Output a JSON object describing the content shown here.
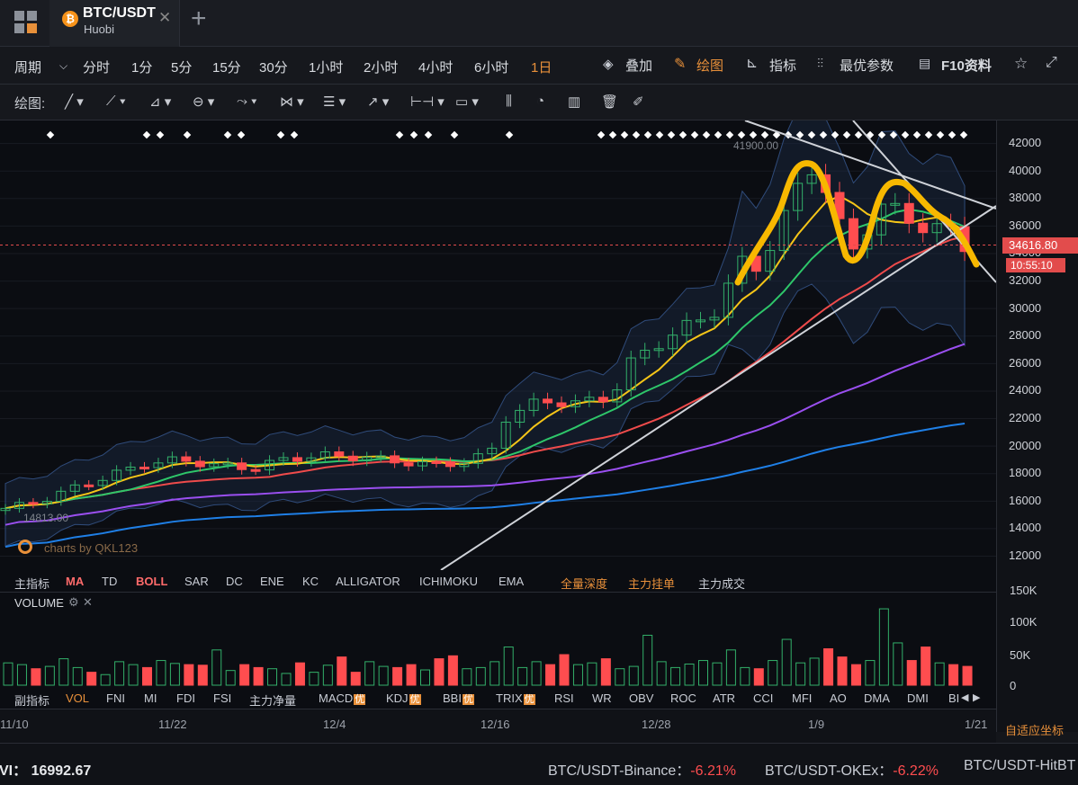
{
  "tab": {
    "symbol": "BTC/USDT",
    "exchange": "Huobi",
    "coin_glyph": "₿"
  },
  "periods": [
    "周期",
    "分时",
    "1分",
    "5分",
    "15分",
    "30分",
    "1小时",
    "2小时",
    "4小时",
    "6小时",
    "1日"
  ],
  "active_period": "1日",
  "toolbar_right": {
    "overlay": "叠加",
    "draw": "绘图",
    "indicator": "指标",
    "optimal": "最优参数",
    "f10": "F10资料"
  },
  "draw_label": "绘图:",
  "chart": {
    "high_label": "41900.00",
    "low_label": "14813.00",
    "watermark": "charts by QKL123",
    "last_price": "34616.80",
    "countdown": "10:55:10"
  },
  "y_ticks": [
    "42000",
    "40000",
    "38000",
    "36000",
    "34000",
    "32000",
    "30000",
    "28000",
    "26000",
    "24000",
    "22000",
    "20000",
    "18000",
    "16000",
    "14000",
    "12000"
  ],
  "main_indicators": [
    {
      "label": "主指标",
      "active": false
    },
    {
      "label": "MA",
      "active": true
    },
    {
      "label": "TD",
      "active": false
    },
    {
      "label": "BOLL",
      "active": true
    },
    {
      "label": "SAR",
      "active": false
    },
    {
      "label": "DC",
      "active": false
    },
    {
      "label": "ENE",
      "active": false
    },
    {
      "label": "KC",
      "active": false
    },
    {
      "label": "ALLIGATOR",
      "active": false
    },
    {
      "label": "ICHIMOKU",
      "active": false
    },
    {
      "label": "EMA",
      "active": false
    },
    {
      "label": "全量深度",
      "active": true
    },
    {
      "label": "主力挂单",
      "active": true
    },
    {
      "label": "主力成交",
      "active": false
    }
  ],
  "volume": {
    "title": "VOLUME",
    "ticks": [
      "150K",
      "100K",
      "50K",
      "0"
    ]
  },
  "sub_indicators": [
    {
      "label": "副指标",
      "badge": ""
    },
    {
      "label": "VOL",
      "badge": ""
    },
    {
      "label": "FNI",
      "badge": ""
    },
    {
      "label": "MI",
      "badge": ""
    },
    {
      "label": "FDI",
      "badge": ""
    },
    {
      "label": "FSI",
      "badge": ""
    },
    {
      "label": "主力净量",
      "badge": ""
    },
    {
      "label": "MACD",
      "badge": "优"
    },
    {
      "label": "KDJ",
      "badge": "优"
    },
    {
      "label": "BBI",
      "badge": "优"
    },
    {
      "label": "TRIX",
      "badge": "优"
    },
    {
      "label": "RSI",
      "badge": ""
    },
    {
      "label": "WR",
      "badge": ""
    },
    {
      "label": "OBV",
      "badge": ""
    },
    {
      "label": "ROC",
      "badge": ""
    },
    {
      "label": "ATR",
      "badge": ""
    },
    {
      "label": "CCI",
      "badge": ""
    },
    {
      "label": "MFI",
      "badge": ""
    },
    {
      "label": "AO",
      "badge": ""
    },
    {
      "label": "DMA",
      "badge": ""
    },
    {
      "label": "DMI",
      "badge": ""
    },
    {
      "label": "BI",
      "badge": ""
    }
  ],
  "x_ticks": [
    "11/10",
    "11/22",
    "12/4",
    "12/16",
    "12/28",
    "1/9",
    "1/21"
  ],
  "adaptive_label": "自适应坐标",
  "footer": {
    "left": "VI： 16992.67",
    "tickers": [
      {
        "name": "BTC/USDT-Binance：",
        "change": "-6.21%"
      },
      {
        "name": "BTC/USDT-OKEx：",
        "change": "-6.22%"
      },
      {
        "name": "BTC/USDT-HitBT",
        "change": ""
      }
    ]
  },
  "colors": {
    "up": "#ff4d4f",
    "down": "#33b06a",
    "accent": "#e8903a",
    "ma5": "#f5c518",
    "ma10": "#2ec76a",
    "ma20": "#ef4b4b",
    "ma30": "#9a4ff0",
    "ma60": "#1f7fe6",
    "highlight": "#f7b800"
  },
  "chart_data": {
    "type": "candlestick",
    "symbol": "BTC/USDT",
    "last_price": 34616.8,
    "high": 41900,
    "low": 14813,
    "ylim": [
      12000,
      42000
    ],
    "x_ticks": [
      "11/10",
      "11/22",
      "12/4",
      "12/16",
      "12/28",
      "1/9",
      "1/21"
    ],
    "volume_ylim": [
      0,
      150000
    ]
  }
}
